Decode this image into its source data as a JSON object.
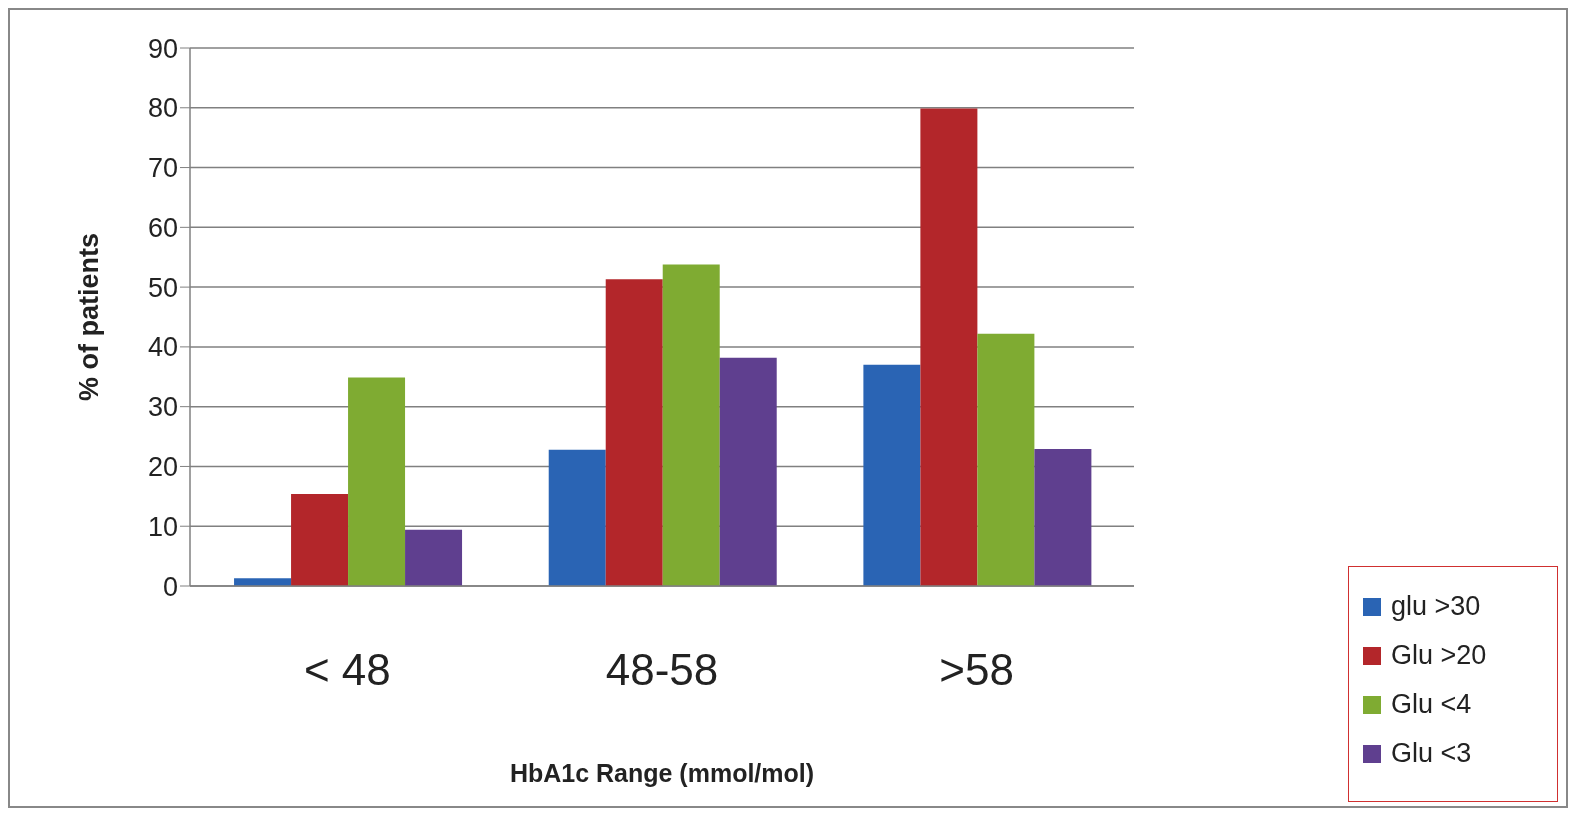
{
  "chart_data": {
    "type": "bar",
    "xlabel": "HbA1c Range (mmol/mol)",
    "ylabel": "% of patients",
    "categories": [
      "< 48",
      "48-58",
      ">58"
    ],
    "series": [
      {
        "name": "glu >30",
        "color": "#2a64b4",
        "values": [
          1.3,
          22.8,
          37.0
        ]
      },
      {
        "name": "Glu >20",
        "color": "#b3262a",
        "values": [
          15.4,
          51.3,
          79.9
        ]
      },
      {
        "name": "Glu <4",
        "color": "#7fab32",
        "values": [
          34.9,
          53.8,
          42.2
        ]
      },
      {
        "name": "Glu <3",
        "color": "#5f3f8f",
        "values": [
          9.4,
          38.2,
          22.9
        ]
      }
    ],
    "ylim": [
      0,
      90
    ],
    "yticks": [
      0,
      10,
      20,
      30,
      40,
      50,
      60,
      70,
      80,
      90
    ],
    "grid": "y",
    "legend": "bottom right"
  }
}
